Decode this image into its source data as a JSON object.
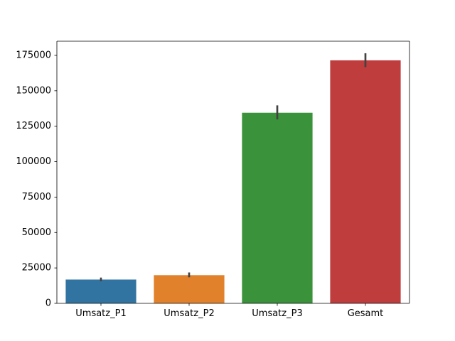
{
  "chart_data": {
    "type": "bar",
    "title": "",
    "xlabel": "",
    "ylabel": "",
    "categories": [
      "Umsatz_P1",
      "Umsatz_P2",
      "Umsatz_P3",
      "Gesamt"
    ],
    "values": [
      16800,
      19900,
      134500,
      171500
    ],
    "error_low": [
      15600,
      18400,
      129800,
      166700
    ],
    "error_high": [
      18200,
      21800,
      139700,
      176500
    ],
    "colors": [
      "#3274a1",
      "#e1812c",
      "#3a923a",
      "#c03d3e"
    ],
    "error_color": "#424242",
    "ylim": [
      0,
      185000
    ],
    "yticks": [
      0,
      25000,
      50000,
      75000,
      100000,
      125000,
      150000,
      175000
    ],
    "ytick_labels": [
      "0",
      "25000",
      "50000",
      "75000",
      "100000",
      "125000",
      "150000",
      "175000"
    ],
    "grid": false,
    "legend": "none"
  }
}
